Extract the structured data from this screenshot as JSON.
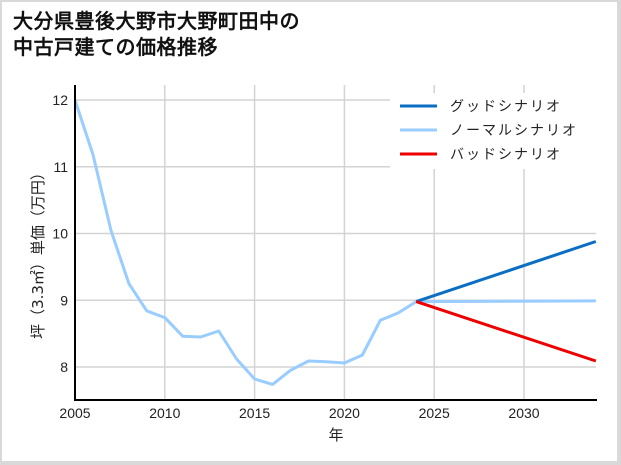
{
  "title": {
    "line1": "大分県豊後大野市大野町田中の",
    "line2": "中古戸建ての価格推移"
  },
  "colors": {
    "good": "#0a6ec4",
    "normal": "#99ccff",
    "bad": "#ee0000",
    "grid": "#d3d3d3",
    "axis": "#000000"
  },
  "chart_data": {
    "type": "line",
    "title": "大分県豊後大野市大野町田中の中古戸建ての価格推移",
    "xlabel": "年",
    "ylabel": "坪（3.3㎡）単価（万円）",
    "xlim": [
      2005,
      2034
    ],
    "ylim": [
      7.55,
      12.1
    ],
    "x_ticks": [
      2005,
      2010,
      2015,
      2020,
      2025,
      2030
    ],
    "y_ticks": [
      8,
      9,
      10,
      11,
      12
    ],
    "grid": true,
    "legend_position": "upper right",
    "series": [
      {
        "name": "ノーマルシナリオ",
        "color": "#99ccff",
        "x": [
          2005,
          2006,
          2007,
          2008,
          2009,
          2010,
          2011,
          2012,
          2013,
          2014,
          2015,
          2016,
          2017,
          2018,
          2019,
          2020,
          2021,
          2022,
          2023,
          2024,
          2034
        ],
        "values": [
          12.0,
          11.18,
          10.05,
          9.25,
          8.84,
          8.74,
          8.46,
          8.45,
          8.54,
          8.12,
          7.82,
          7.74,
          7.95,
          8.09,
          8.08,
          8.06,
          8.18,
          8.7,
          8.81,
          8.98,
          8.99
        ]
      },
      {
        "name": "グッドシナリオ",
        "color": "#0a6ec4",
        "x": [
          2024,
          2034
        ],
        "values": [
          8.98,
          9.88
        ]
      },
      {
        "name": "バッドシナリオ",
        "color": "#ee0000",
        "x": [
          2024,
          2034
        ],
        "values": [
          8.98,
          8.09
        ]
      }
    ]
  },
  "legend": {
    "items": [
      {
        "label": "グッドシナリオ",
        "color": "#0a6ec4"
      },
      {
        "label": "ノーマルシナリオ",
        "color": "#99ccff"
      },
      {
        "label": "バッドシナリオ",
        "color": "#ee0000"
      }
    ]
  },
  "axes": {
    "x_label": "年",
    "y_label": "坪（3.3㎡）単価（万円）",
    "x_tick_labels": [
      "2005",
      "2010",
      "2015",
      "2020",
      "2025",
      "2030"
    ],
    "y_tick_labels": [
      "12",
      "11",
      "10",
      "9",
      "8"
    ]
  }
}
